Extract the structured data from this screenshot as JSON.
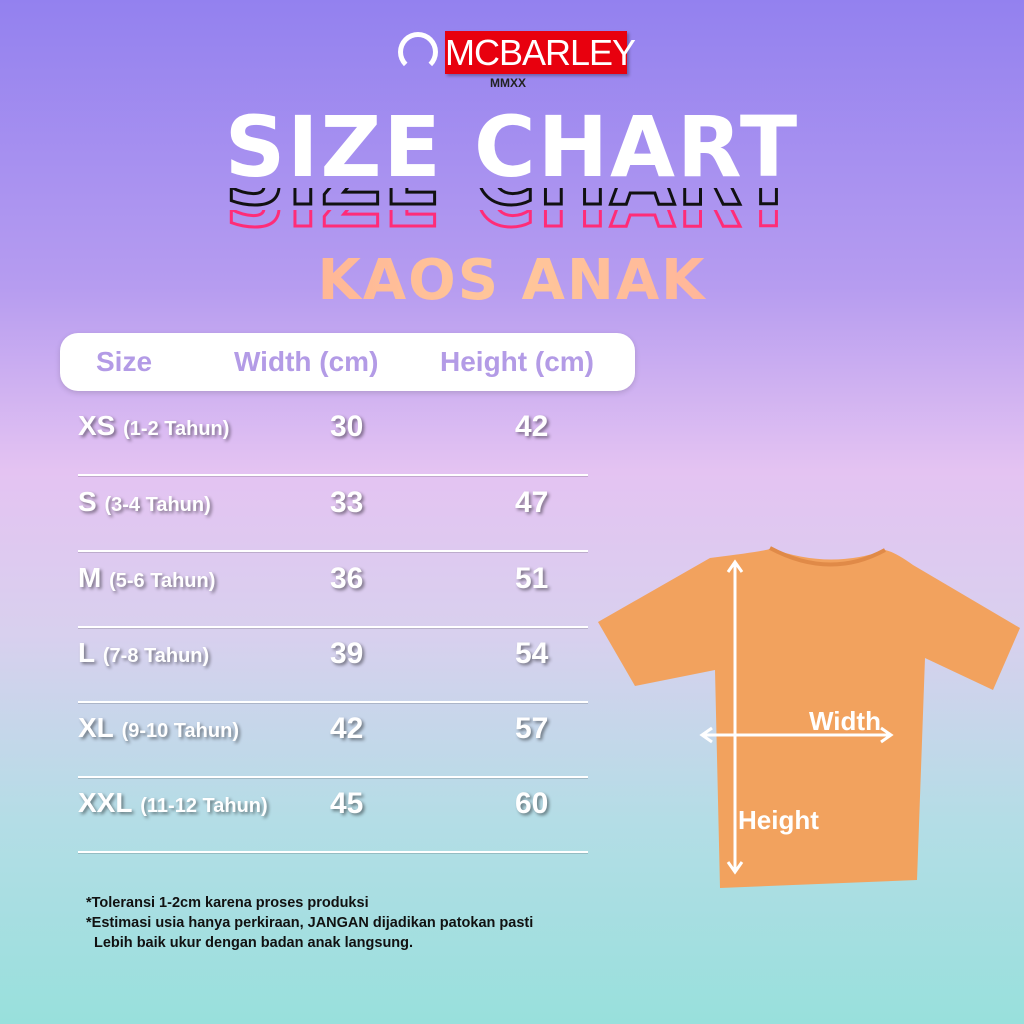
{
  "brand": {
    "name": "MCBARLEY",
    "subtitle": "MMXX"
  },
  "title": {
    "main": "SIZE CHART",
    "sub": "KAOS ANAK"
  },
  "table": {
    "headers": [
      "Size",
      "Width (cm)",
      "Height (cm)"
    ],
    "rows": [
      {
        "size": "XS",
        "age": "(1-2 Tahun)",
        "width": "30",
        "height": "42"
      },
      {
        "size": "S",
        "age": "(3-4 Tahun)",
        "width": "33",
        "height": "47"
      },
      {
        "size": "M",
        "age": "(5-6 Tahun)",
        "width": "36",
        "height": "51"
      },
      {
        "size": "L",
        "age": "(7-8 Tahun)",
        "width": "39",
        "height": "54"
      },
      {
        "size": "XL",
        "age": "(9-10 Tahun)",
        "width": "42",
        "height": "57"
      },
      {
        "size": "XXL",
        "age": "(11-12 Tahun)",
        "width": "45",
        "height": "60"
      }
    ]
  },
  "diagram": {
    "width_label": "Width",
    "height_label": "Height",
    "shirt_color": "#f2a25e"
  },
  "notes": [
    "*Toleransi 1-2cm karena proses produksi",
    "*Estimasi usia hanya perkiraan, JANGAN dijadikan patokan pasti",
    "Lebih baik ukur dengan badan anak langsung."
  ],
  "colors": {
    "logo_red": "#e8000e",
    "header_text": "#b39be6",
    "outline_pink": "#ff2c78"
  }
}
